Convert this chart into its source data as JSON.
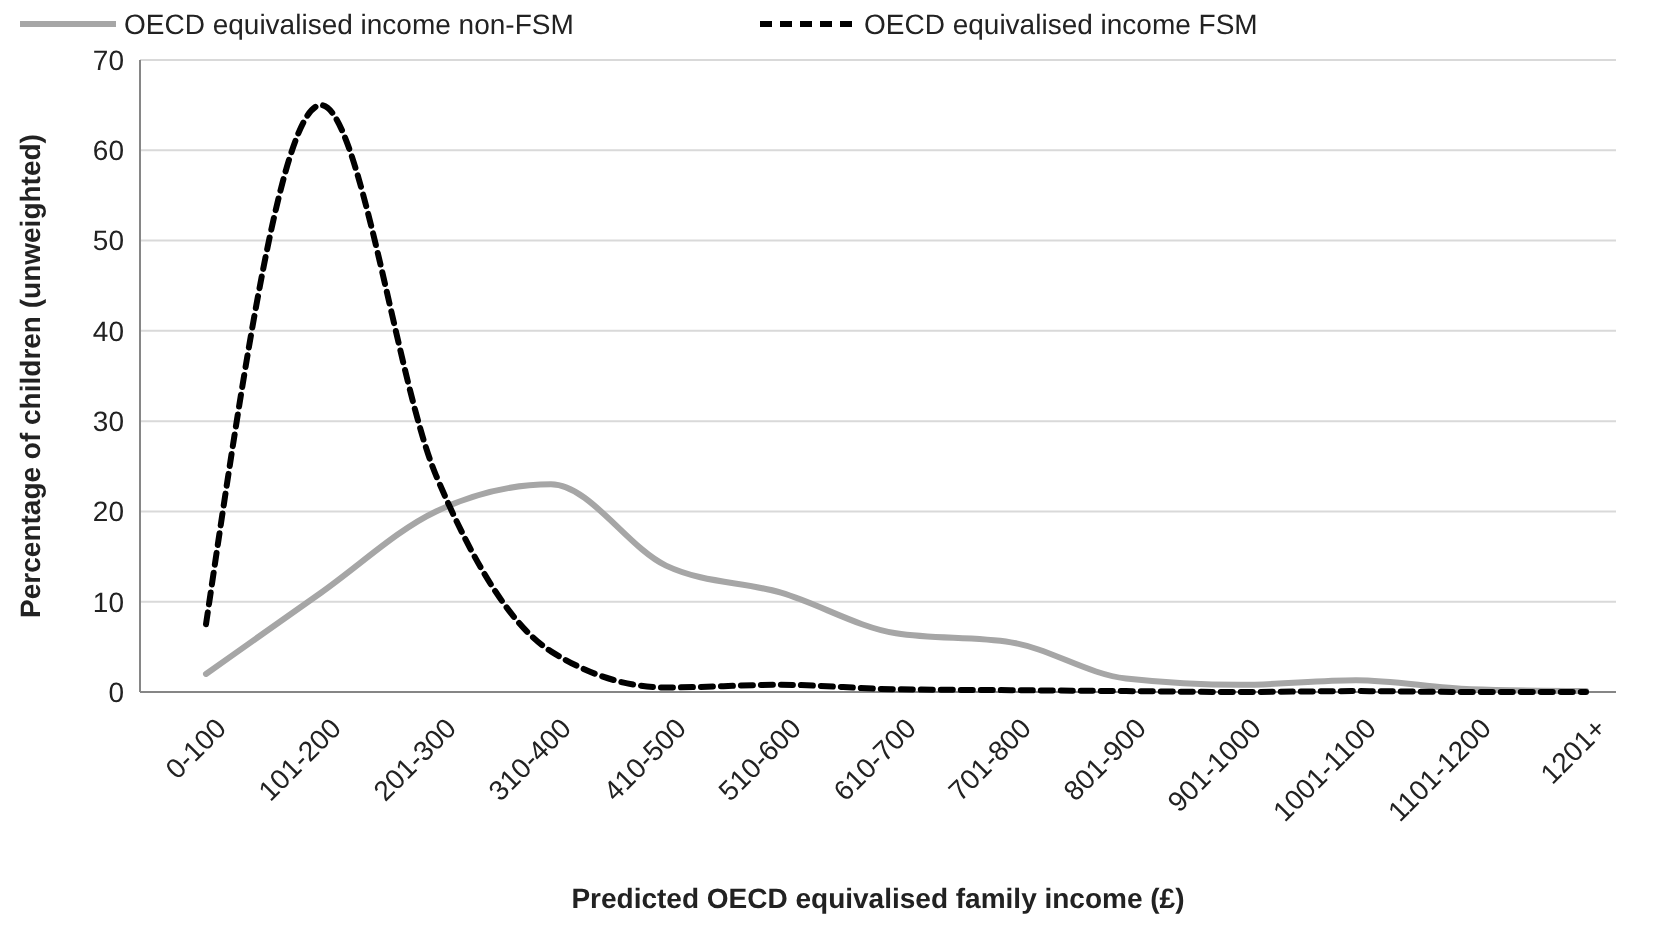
{
  "chart_data": {
    "type": "line",
    "xlabel": "Predicted OECD equivalised family income (£)",
    "ylabel": "Percentage of children (unweighted)",
    "categories": [
      "0-100",
      "101-200",
      "201-300",
      "310-400",
      "410-500",
      "510-600",
      "610-700",
      "701-800",
      "801-900",
      "901-1000",
      "1001-1100",
      "1101-1200",
      "1201+"
    ],
    "series": [
      {
        "name": "OECD equivalised income non-FSM",
        "color": "#a6a6a6",
        "line_style": "solid",
        "values": [
          2,
          11,
          20,
          23,
          14,
          11,
          6.5,
          5.5,
          1.5,
          0.8,
          1.3,
          0.3,
          0.1
        ]
      },
      {
        "name": "OECD equivalised income FSM",
        "color": "#000000",
        "line_style": "dashed",
        "values": [
          7.5,
          65,
          24,
          4.5,
          0.5,
          0.8,
          0.3,
          0.2,
          0.1,
          0,
          0.1,
          0,
          0
        ]
      }
    ],
    "ylim": [
      0,
      70
    ],
    "yticks": [
      0,
      10,
      20,
      30,
      40,
      50,
      60,
      70
    ],
    "grid": "y",
    "legend": "top",
    "marker": "none"
  }
}
